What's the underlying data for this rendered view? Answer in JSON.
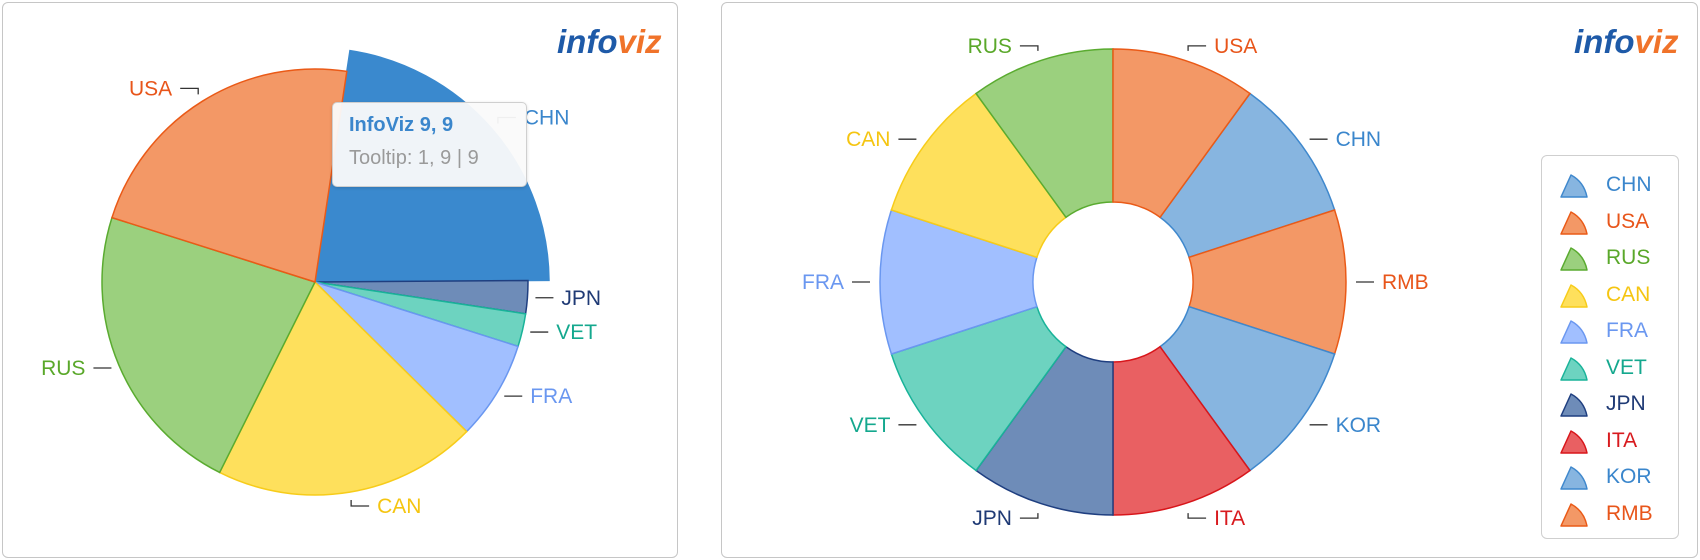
{
  "logo": {
    "part1": "info",
    "part2": "viz"
  },
  "tooltip": {
    "title": "InfoViz 9, 9",
    "body": "Tooltip: 1, 9 | 9"
  },
  "colors": {
    "CHN": {
      "fill": "#87b5e0",
      "stroke": "#3f88cd",
      "text": "#3a86cc"
    },
    "CHN_highlight": {
      "fill": "#3a89ce",
      "stroke": "#3a89ce"
    },
    "USA": {
      "fill": "#f39866",
      "stroke": "#ea5a17",
      "text": "#e8551a"
    },
    "RUS": {
      "fill": "#9bd07e",
      "stroke": "#5aab30",
      "text": "#5aa82a"
    },
    "CAN": {
      "fill": "#fee05c",
      "stroke": "#f7cc1a",
      "text": "#f5c511"
    },
    "FRA": {
      "fill": "#a1bfff",
      "stroke": "#6a97f0",
      "text": "#6a97f0"
    },
    "VET": {
      "fill": "#6dd3c0",
      "stroke": "#19b399",
      "text": "#14a88e"
    },
    "JPN": {
      "fill": "#6e8cb8",
      "stroke": "#1f3f80",
      "text": "#1f3a75"
    },
    "ITA": {
      "fill": "#e96062",
      "stroke": "#d8161b",
      "text": "#d81a1e"
    },
    "KOR": {
      "fill": "#87b5e0",
      "stroke": "#3f88cd",
      "text": "#3a86cc"
    },
    "RMB": {
      "fill": "#f39866",
      "stroke": "#ea5a17",
      "text": "#e8551a"
    }
  },
  "chart_data": [
    {
      "type": "pie",
      "title": "",
      "highlighted": "CHN",
      "series": [
        {
          "name": "CHN",
          "value": 9
        },
        {
          "name": "JPN",
          "value": 1
        },
        {
          "name": "VET",
          "value": 1
        },
        {
          "name": "FRA",
          "value": 3
        },
        {
          "name": "CAN",
          "value": 8
        },
        {
          "name": "RUS",
          "value": 9
        },
        {
          "name": "USA",
          "value": 9
        }
      ]
    },
    {
      "type": "pie",
      "subtype": "donut",
      "title": "",
      "legend": "right",
      "series": [
        {
          "name": "CHN",
          "value": 1
        },
        {
          "name": "RMB",
          "value": 1
        },
        {
          "name": "KOR",
          "value": 1
        },
        {
          "name": "ITA",
          "value": 1
        },
        {
          "name": "JPN",
          "value": 1
        },
        {
          "name": "VET",
          "value": 1
        },
        {
          "name": "FRA",
          "value": 1
        },
        {
          "name": "CAN",
          "value": 1
        },
        {
          "name": "RUS",
          "value": 1
        },
        {
          "name": "USA",
          "value": 1
        }
      ],
      "legend_items": [
        "CHN",
        "USA",
        "RUS",
        "CAN",
        "FRA",
        "VET",
        "JPN",
        "ITA",
        "KOR",
        "RMB"
      ]
    }
  ]
}
